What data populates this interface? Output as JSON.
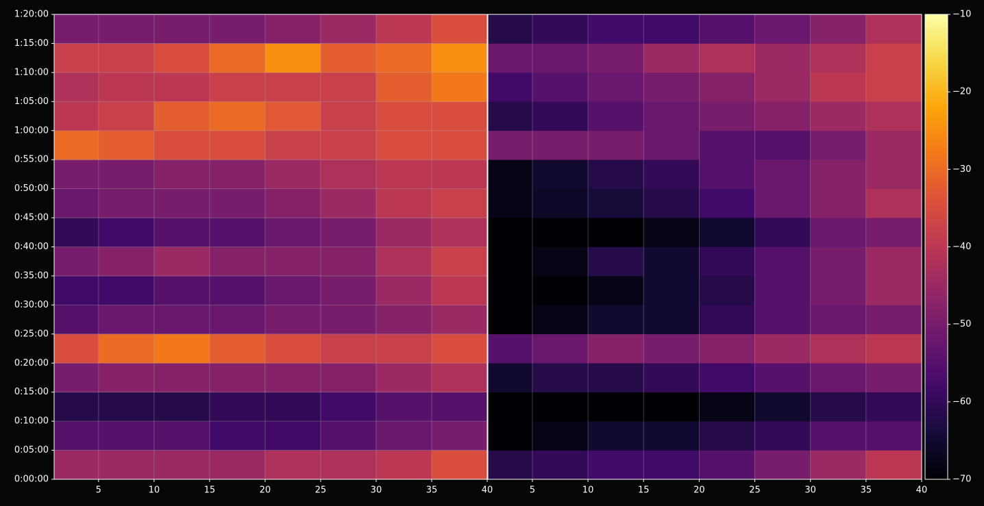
{
  "chart_data": [
    {
      "type": "heatmap",
      "colormap": "inferno",
      "clim": [
        -70,
        -10
      ],
      "grid": true,
      "xlim": [
        1,
        40
      ],
      "xticks": [
        5,
        10,
        15,
        20,
        25,
        30,
        35,
        40
      ],
      "ylim": [
        0,
        80
      ],
      "yticks": [
        {
          "value": 0,
          "label": "0:00:00"
        },
        {
          "value": 5,
          "label": "0:05:00"
        },
        {
          "value": 10,
          "label": "0:10:00"
        },
        {
          "value": 15,
          "label": "0:15:00"
        },
        {
          "value": 20,
          "label": "0:20:00"
        },
        {
          "value": 25,
          "label": "0:25:00"
        },
        {
          "value": 30,
          "label": "0:30:00"
        },
        {
          "value": 35,
          "label": "0:35:00"
        },
        {
          "value": 40,
          "label": "0:40:00"
        },
        {
          "value": 45,
          "label": "0:45:00"
        },
        {
          "value": 50,
          "label": "0:50:00"
        },
        {
          "value": 55,
          "label": "0:55:00"
        },
        {
          "value": 60,
          "label": "1:00:00"
        },
        {
          "value": 65,
          "label": "1:05:00"
        },
        {
          "value": 70,
          "label": "1:10:00"
        },
        {
          "value": 75,
          "label": "1:15:00"
        },
        {
          "value": 80,
          "label": "1:20:00"
        }
      ],
      "xbins": [
        1,
        5,
        10,
        15,
        20,
        25,
        30,
        35,
        40
      ],
      "ybins": [
        0,
        5,
        10,
        15,
        20,
        25,
        30,
        35,
        40,
        45,
        50,
        55,
        60,
        65,
        70,
        75,
        80
      ],
      "values": [
        [
          -45,
          -45,
          -45,
          -45,
          -42,
          -42,
          -40,
          -35
        ],
        [
          -55,
          -55,
          -55,
          -58,
          -58,
          -55,
          -52,
          -50
        ],
        [
          -62,
          -62,
          -62,
          -60,
          -60,
          -58,
          -55,
          -55
        ],
        [
          -50,
          -48,
          -48,
          -48,
          -48,
          -48,
          -45,
          -42
        ],
        [
          -35,
          -30,
          -28,
          -32,
          -35,
          -38,
          -38,
          -35
        ],
        [
          -55,
          -52,
          -52,
          -52,
          -50,
          -50,
          -48,
          -45
        ],
        [
          -58,
          -58,
          -55,
          -55,
          -52,
          -50,
          -45,
          -40
        ],
        [
          -50,
          -48,
          -45,
          -48,
          -48,
          -48,
          -42,
          -38
        ],
        [
          -60,
          -58,
          -55,
          -55,
          -52,
          -50,
          -45,
          -42
        ],
        [
          -52,
          -50,
          -50,
          -50,
          -48,
          -45,
          -40,
          -38
        ],
        [
          -50,
          -50,
          -48,
          -48,
          -45,
          -42,
          -40,
          -40
        ],
        [
          -30,
          -32,
          -35,
          -35,
          -38,
          -38,
          -35,
          -35
        ],
        [
          -40,
          -38,
          -32,
          -30,
          -33,
          -38,
          -35,
          -35
        ],
        [
          -42,
          -40,
          -40,
          -38,
          -38,
          -38,
          -32,
          -28
        ],
        [
          -38,
          -38,
          -35,
          -30,
          -25,
          -32,
          -30,
          -25
        ],
        [
          -50,
          -50,
          -50,
          -50,
          -48,
          -45,
          -40,
          -35
        ]
      ]
    },
    {
      "type": "heatmap",
      "colormap": "inferno",
      "clim": [
        -70,
        -10
      ],
      "grid": true,
      "xlim": [
        1,
        40
      ],
      "xticks": [
        5,
        10,
        15,
        20,
        25,
        30,
        35,
        40
      ],
      "ylim": [
        0,
        80
      ],
      "xbins": [
        1,
        5,
        10,
        15,
        20,
        25,
        30,
        35,
        40
      ],
      "ybins": [
        0,
        5,
        10,
        15,
        20,
        25,
        30,
        35,
        40,
        45,
        50,
        55,
        60,
        65,
        70,
        75,
        80
      ],
      "values": [
        [
          -62,
          -60,
          -58,
          -58,
          -55,
          -50,
          -45,
          -40
        ],
        [
          -70,
          -68,
          -65,
          -65,
          -62,
          -60,
          -55,
          -55
        ],
        [
          -70,
          -70,
          -70,
          -70,
          -68,
          -65,
          -62,
          -60
        ],
        [
          -65,
          -62,
          -62,
          -60,
          -58,
          -55,
          -52,
          -50
        ],
        [
          -55,
          -52,
          -48,
          -50,
          -48,
          -45,
          -42,
          -40
        ],
        [
          -70,
          -68,
          -65,
          -65,
          -60,
          -55,
          -52,
          -50
        ],
        [
          -70,
          -70,
          -68,
          -65,
          -62,
          -55,
          -50,
          -45
        ],
        [
          -70,
          -68,
          -62,
          -65,
          -60,
          -55,
          -50,
          -45
        ],
        [
          -70,
          -70,
          -70,
          -68,
          -65,
          -60,
          -52,
          -50
        ],
        [
          -68,
          -66,
          -64,
          -62,
          -58,
          -52,
          -48,
          -42
        ],
        [
          -68,
          -65,
          -62,
          -60,
          -55,
          -52,
          -48,
          -45
        ],
        [
          -50,
          -50,
          -50,
          -52,
          -55,
          -55,
          -50,
          -45
        ],
        [
          -62,
          -60,
          -55,
          -52,
          -50,
          -48,
          -45,
          -42
        ],
        [
          -58,
          -55,
          -52,
          -50,
          -48,
          -45,
          -40,
          -38
        ],
        [
          -52,
          -52,
          -50,
          -45,
          -42,
          -45,
          -42,
          -38
        ],
        [
          -62,
          -60,
          -58,
          -58,
          -55,
          -52,
          -48,
          -42
        ]
      ]
    },
    {
      "type": "colorbar",
      "colormap": "inferno",
      "clim": [
        -70,
        -10
      ],
      "ticks": [
        {
          "value": -70,
          "label": "−70"
        },
        {
          "value": -60,
          "label": "−60"
        },
        {
          "value": -50,
          "label": "−50"
        },
        {
          "value": -40,
          "label": "−40"
        },
        {
          "value": -30,
          "label": "−30"
        },
        {
          "value": -20,
          "label": "−20"
        },
        {
          "value": -10,
          "label": "−10"
        }
      ]
    }
  ]
}
